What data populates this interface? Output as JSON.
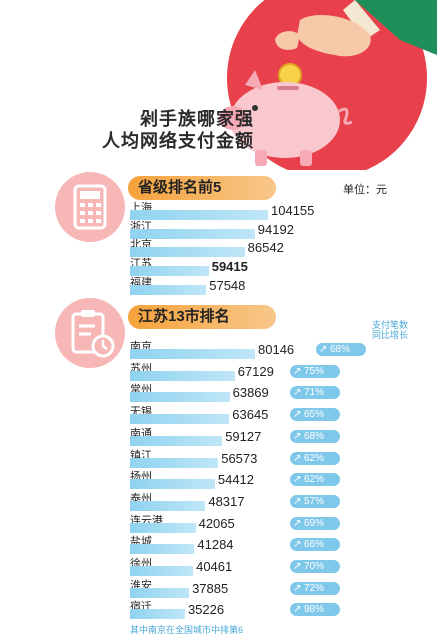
{
  "title_lines": [
    "剁手族哪家强",
    "人均网络支付金额"
  ],
  "section1": {
    "tag": "省级排名前5",
    "unit": "单位：元"
  },
  "section2": {
    "tag": "江苏13市排名",
    "growth_header": "支付笔数同比增长"
  },
  "footnote": "其中南京在全国城市中排第6",
  "chart_data": [
    {
      "type": "bar",
      "orientation": "horizontal",
      "title": "省级排名前5",
      "unit": "单位：元",
      "categories": [
        "上海",
        "浙江",
        "北京",
        "江苏",
        "福建"
      ],
      "values": [
        104155,
        94192,
        86542,
        59415,
        57548
      ],
      "highlight": "江苏"
    },
    {
      "type": "bar",
      "orientation": "horizontal",
      "title": "江苏13市排名",
      "categories": [
        "南京",
        "苏州",
        "常州",
        "无锡",
        "南通",
        "镇江",
        "扬州",
        "泰州",
        "连云港",
        "盐城",
        "徐州",
        "淮安",
        "宿迁"
      ],
      "values": [
        80146,
        67129,
        63869,
        63645,
        59127,
        56573,
        54412,
        48317,
        42065,
        41284,
        40461,
        37885,
        35226
      ],
      "growth_label": "支付笔数同比增长",
      "growth": [
        "68%",
        "75%",
        "71%",
        "65%",
        "68%",
        "62%",
        "62%",
        "57%",
        "69%",
        "66%",
        "70%",
        "72%",
        "98%"
      ]
    }
  ],
  "colors": {
    "bar": "#8fd3f0",
    "tag": "#f5a23a",
    "chip": "#7fc8ea",
    "icon_bg": "#f7b7b7",
    "hero_circle": "#e8414b"
  }
}
